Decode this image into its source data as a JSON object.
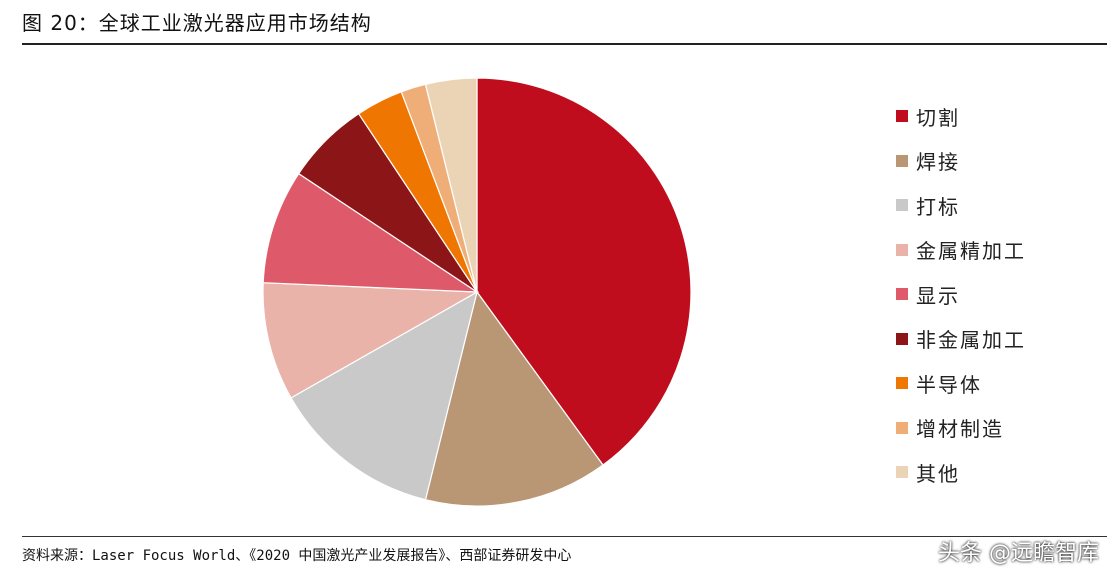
{
  "title": "图 20：全球工业激光器应用市场结构",
  "source": "资料来源：Laser Focus World、《2020 中国激光产业发展报告》、西部证券研发中心",
  "watermark": "头条 @远瞻智库",
  "chart_data": {
    "type": "pie",
    "title": "图 20：全球工业激光器应用市场结构",
    "legend_position": "right",
    "start_angle_deg": 0,
    "direction": "clockwise",
    "units": "percent (estimated)",
    "slices": [
      {
        "label": "切割",
        "value": 40.3,
        "color": "#C00D1E"
      },
      {
        "label": "焊接",
        "value": 14.0,
        "color": "#B99674"
      },
      {
        "label": "打标",
        "value": 13.0,
        "color": "#C9C9C9"
      },
      {
        "label": "金属精加工",
        "value": 9.0,
        "color": "#EAB3A9"
      },
      {
        "label": "显示",
        "value": 8.7,
        "color": "#DE5A6B"
      },
      {
        "label": "非金属加工",
        "value": 6.4,
        "color": "#8C1517"
      },
      {
        "label": "半导体",
        "value": 3.6,
        "color": "#EF7600"
      },
      {
        "label": "增材制造",
        "value": 1.9,
        "color": "#EFAE77"
      },
      {
        "label": "其他",
        "value": 3.9,
        "color": "#EBD4B6"
      }
    ]
  }
}
